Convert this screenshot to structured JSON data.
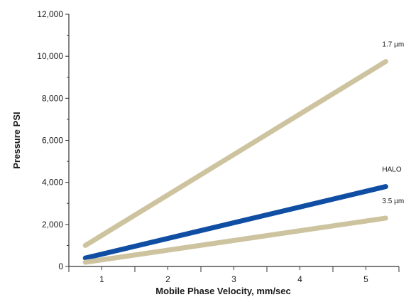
{
  "chart_data": {
    "type": "line",
    "title": "",
    "xlabel": "Mobile Phase Velocity, mm/sec",
    "ylabel": "Pressure PSI",
    "xlim": [
      0.5,
      5.5
    ],
    "ylim": [
      0,
      12000
    ],
    "x_ticks": [
      1,
      2,
      3,
      4,
      5
    ],
    "y_ticks": [
      0,
      2000,
      4000,
      6000,
      8000,
      10000,
      12000
    ],
    "x_tick_labels": [
      "1",
      "2",
      "3",
      "4",
      "5"
    ],
    "y_tick_labels": [
      "0",
      "2,000",
      "4,000",
      "6,000",
      "8,000",
      "10,000",
      "12,000"
    ],
    "grid": false,
    "legend": "none (series labeled at line ends)",
    "series": [
      {
        "name": "1.7 µm",
        "color": "#cdc49f",
        "x": [
          0.75,
          5.3
        ],
        "y": [
          1000,
          9750
        ]
      },
      {
        "name": "HALO",
        "color": "#0f4ea3",
        "x": [
          0.75,
          5.3
        ],
        "y": [
          400,
          3800
        ]
      },
      {
        "name": "3.5 µm",
        "color": "#cdc49f",
        "x": [
          0.75,
          5.3
        ],
        "y": [
          200,
          2300
        ]
      }
    ]
  }
}
